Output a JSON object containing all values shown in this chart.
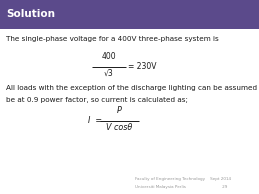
{
  "title": "Solution",
  "title_bg": "#5b4a8b",
  "title_color": "#ffffff",
  "body_bg": "#ffffff",
  "text_color": "#1a1a1a",
  "line1": "The single-phase voltage for a 400V three-phase system is",
  "formula1_num": "400",
  "formula1_den": "√3",
  "formula1_result": "= 230V",
  "line2a": "All loads with the exception of the discharge lighting can be assumed to",
  "line2b": "be at 0.9 power factor, so current is calculated as;",
  "formula2_lhs": "I  =",
  "formula2_num": "P",
  "formula2_den": "V cosθ",
  "footer1": "Faculty of Engineering Technology    Sept 2014",
  "footer2": "Universiti Malaysia Perlis                             29",
  "footer_color": "#999999",
  "figsize": [
    2.59,
    1.94
  ],
  "dpi": 100
}
